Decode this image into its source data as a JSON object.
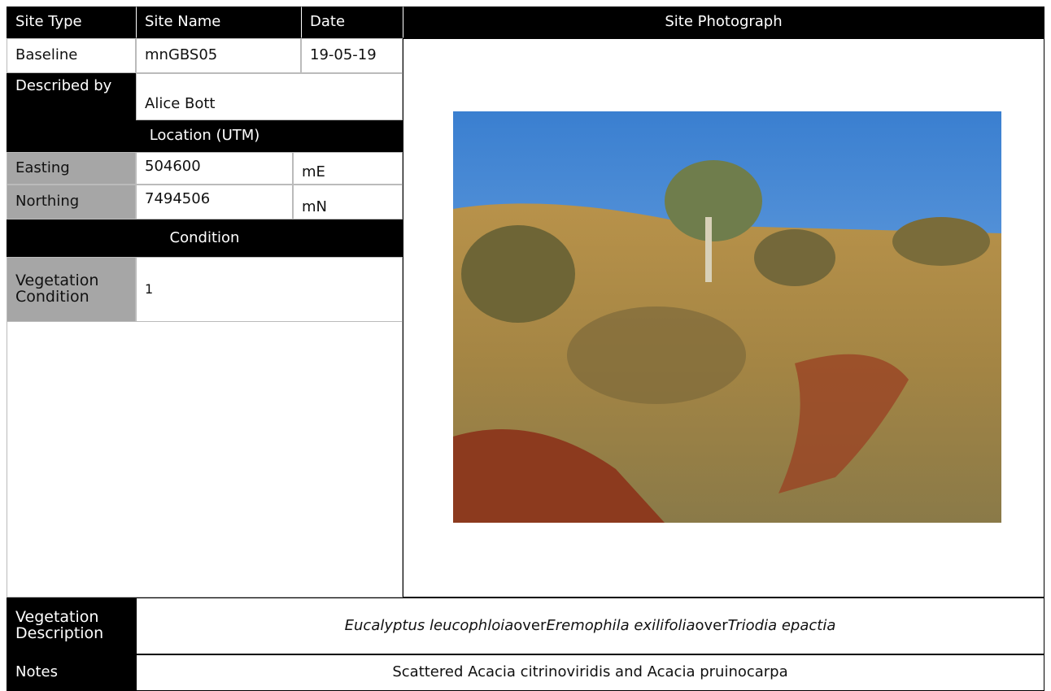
{
  "header": {
    "site_type": "Site Type",
    "site_name": "Site Name",
    "date": "Date",
    "photo": "Site Photograph"
  },
  "site": {
    "site_type": "Baseline",
    "site_name": "mnGBS05",
    "date": "19-05-19"
  },
  "described_by": {
    "label": "Described by",
    "value": "Alice Bott"
  },
  "location": {
    "title": "Location (UTM)",
    "easting": {
      "label": "Easting",
      "value": "504600",
      "unit": "mE"
    },
    "northing": {
      "label": "Northing",
      "value": "7494506",
      "unit": "mN"
    }
  },
  "condition": {
    "title": "Condition",
    "label": "Vegetation Condition",
    "value": "1"
  },
  "vegetation_description": {
    "label": "Vegetation Description",
    "parts": [
      "Eucalyptus leucophloia",
      "over",
      "Eremophila exilifolia",
      "over",
      "Triodia epactia"
    ]
  },
  "notes": {
    "label": "Notes",
    "value": "Scattered Acacia citrinoviridis and Acacia pruinocarpa"
  }
}
